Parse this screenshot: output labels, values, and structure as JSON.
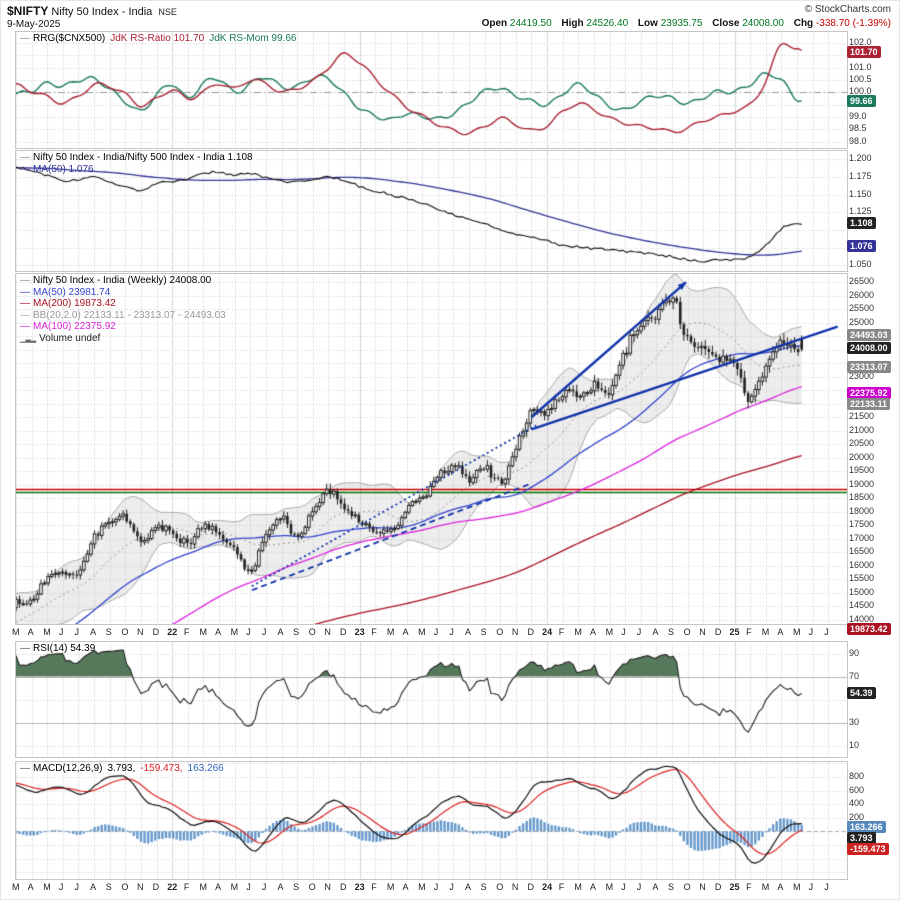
{
  "header": {
    "symbol": "$NIFTY",
    "name": "Nifty 50 Index - India",
    "exchange": "NSE",
    "date": "9-May-2025",
    "copyright": "© StockCharts.com",
    "quote": {
      "open_label": "Open",
      "open": "24419.50",
      "high_label": "High",
      "high": "24526.40",
      "low_label": "Low",
      "low": "23935.75",
      "close_label": "Close",
      "close": "24008.00",
      "chg_label": "Chg",
      "chg": "-338.70 (-1.39%)"
    }
  },
  "colors": {
    "grid": "#ebebeb",
    "grid_year": "#d6d6d6",
    "border": "#c6c6c6",
    "candle": "#222222",
    "ma50": "#3344cc",
    "ma100": "#dd22dd",
    "ma200": "#aa1122",
    "bb": "#aaaaaa",
    "bb_fill": "rgba(190,190,190,0.28)",
    "trend": "#1133aa",
    "hline_red": "#cc0000",
    "hline_green": "#007700",
    "rrg_ratio": "#aa2233",
    "rrg_mom": "#1a7a5e",
    "ratio_line": "#111111",
    "ratio_ma": "#333399",
    "rsi": "#222222",
    "rsi_fill": "#55795a",
    "macd": "#111111",
    "macd_signal": "#dd2222",
    "macd_hist": "#6699cc"
  },
  "x_axis": {
    "labels": [
      "M",
      "A",
      "M",
      "J",
      "J",
      "A",
      "S",
      "O",
      "N",
      "D",
      "22",
      "F",
      "M",
      "A",
      "M",
      "J",
      "J",
      "A",
      "S",
      "O",
      "N",
      "D",
      "23",
      "F",
      "M",
      "A",
      "M",
      "J",
      "J",
      "A",
      "S",
      "O",
      "N",
      "D",
      "24",
      "F",
      "M",
      "A",
      "M",
      "J",
      "J",
      "A",
      "S",
      "O",
      "N",
      "D",
      "25",
      "F",
      "M",
      "A",
      "M",
      "J",
      "J"
    ]
  },
  "chart_data": [
    {
      "id": "rrg",
      "type": "line",
      "legend": [
        {
          "marker": "#888888",
          "parts": [
            {
              "text": "RRG($CNX500)",
              "color": "#000000"
            },
            {
              "text": "JdK RS-Ratio 101.70",
              "color": "#aa2233"
            },
            {
              "text": "JdK RS-Mom 99.66",
              "color": "#1a7a5e"
            }
          ]
        }
      ],
      "ylim": [
        97.75,
        102.45
      ],
      "grid_step": 0.5,
      "baseline": 100,
      "yticks": [
        {
          "v": 102.0,
          "t": "102.0"
        },
        {
          "v": 101.0,
          "t": "101.0"
        },
        {
          "v": 100.5,
          "t": "100.5"
        },
        {
          "v": 100.0,
          "t": "100.0"
        },
        {
          "v": 99.0,
          "t": "99.0"
        },
        {
          "v": 98.5,
          "t": "98.5"
        },
        {
          "v": 98.0,
          "t": "98.0"
        }
      ],
      "tags": [
        {
          "text": "101.70",
          "value": 101.7,
          "bg": "#aa2233"
        },
        {
          "text": "99.66",
          "value": 99.66,
          "bg": "#1a7a5e"
        }
      ],
      "series": [
        {
          "name": "JdK RS-Ratio",
          "color": "#aa2233",
          "last": 101.7,
          "monthly": [
            100.3,
            100.0,
            99.8,
            99.6,
            99.9,
            100.3,
            100.2,
            99.9,
            99.5,
            99.8,
            100.1,
            99.7,
            100.0,
            100.4,
            100.2,
            100.5,
            100.3,
            100.0,
            100.2,
            100.5,
            101.0,
            101.5,
            101.2,
            100.6,
            100.0,
            99.4,
            99.0,
            98.7,
            98.5,
            98.4,
            98.6,
            98.9,
            98.7,
            98.5,
            98.7,
            99.2,
            99.5,
            99.3,
            99.0,
            98.8,
            98.6,
            98.5,
            98.4,
            98.6,
            98.9,
            99.0,
            99.2,
            99.5,
            100.5,
            102.0,
            101.7
          ]
        },
        {
          "name": "JdK RS-Mom",
          "color": "#1a7a5e",
          "last": 99.66,
          "monthly": [
            99.9,
            100.1,
            100.4,
            100.2,
            100.5,
            100.6,
            100.1,
            99.6,
            99.3,
            99.9,
            100.3,
            99.8,
            100.4,
            100.5,
            100.0,
            100.4,
            100.6,
            100.2,
            100.3,
            100.6,
            100.5,
            100.0,
            99.4,
            99.0,
            98.9,
            99.2,
            99.0,
            98.9,
            99.2,
            99.6,
            100.0,
            100.2,
            99.9,
            99.6,
            99.5,
            100.0,
            100.3,
            99.9,
            99.5,
            99.3,
            99.6,
            99.9,
            99.8,
            99.5,
            99.8,
            100.1,
            100.0,
            100.3,
            100.8,
            100.5,
            99.66
          ]
        }
      ]
    },
    {
      "id": "ratio",
      "type": "line",
      "legend": [
        {
          "marker": "#888888",
          "parts": [
            {
              "text": "Nifty 50 Index - India/Nifty 500 Index - India 1.108",
              "color": "#000000"
            }
          ]
        },
        {
          "marker": "#333399",
          "parts": [
            {
              "text": "MA(50) 1.076",
              "color": "#333399"
            }
          ]
        }
      ],
      "ylim": [
        1.042,
        1.212
      ],
      "grid_step": 0.025,
      "ma_period": 50,
      "yticks": [
        {
          "v": 1.2,
          "t": "1.200"
        },
        {
          "v": 1.175,
          "t": "1.175"
        },
        {
          "v": 1.15,
          "t": "1.150"
        },
        {
          "v": 1.125,
          "t": "1.125"
        },
        {
          "v": 1.05,
          "t": "1.050"
        }
      ],
      "tags": [
        {
          "text": "1.108",
          "value": 1.108,
          "bg": "#222222"
        },
        {
          "text": "1.076",
          "value": 1.076,
          "bg": "#333399"
        }
      ],
      "seed_anchors": [
        [
          -46,
          1.186
        ],
        [
          -1,
          1.188
        ]
      ],
      "monthly": [
        1.19,
        1.183,
        1.178,
        1.17,
        1.172,
        1.175,
        1.168,
        1.162,
        1.155,
        1.166,
        1.168,
        1.172,
        1.18,
        1.182,
        1.178,
        1.18,
        1.175,
        1.17,
        1.168,
        1.172,
        1.176,
        1.17,
        1.162,
        1.155,
        1.15,
        1.145,
        1.138,
        1.13,
        1.122,
        1.115,
        1.108,
        1.1,
        1.095,
        1.09,
        1.085,
        1.078,
        1.076,
        1.074,
        1.072,
        1.07,
        1.068,
        1.066,
        1.062,
        1.058,
        1.056,
        1.058,
        1.058,
        1.062,
        1.078,
        1.102,
        1.108
      ]
    },
    {
      "id": "price",
      "type": "candlestick",
      "legend": [
        {
          "marker": "#888888",
          "parts": [
            {
              "text": "Nifty 50 Index - India (Weekly) 24008.00",
              "color": "#000000"
            }
          ]
        },
        {
          "marker": "#3344cc",
          "parts": [
            {
              "text": "MA(50) 23981.74",
              "color": "#3344cc"
            }
          ]
        },
        {
          "marker": "#aa1122",
          "parts": [
            {
              "text": "MA(200) 19873.42",
              "color": "#aa1122"
            }
          ]
        },
        {
          "marker": "#aaaaaa",
          "parts": [
            {
              "text": "BB(20,2.0) 22133.11 - 23313.07 - 24493.03",
              "color": "#999999"
            }
          ]
        },
        {
          "marker": "#dd22dd",
          "parts": [
            {
              "text": "MA(100) 22375.92",
              "color": "#dd22dd"
            }
          ]
        },
        {
          "icon": "volume",
          "parts": [
            {
              "text": "Volume undef",
              "color": "#222222"
            }
          ]
        }
      ],
      "ylim": [
        13850,
        26800
      ],
      "grid_step": 500,
      "yticks": [
        {
          "v": 26500,
          "t": "26500"
        },
        {
          "v": 26000,
          "t": "26000"
        },
        {
          "v": 25500,
          "t": "25500"
        },
        {
          "v": 25000,
          "t": "25000"
        },
        {
          "v": 23000,
          "t": "23000"
        },
        {
          "v": 21500,
          "t": "21500"
        },
        {
          "v": 21000,
          "t": "21000"
        },
        {
          "v": 20500,
          "t": "20500"
        },
        {
          "v": 20000,
          "t": "20000"
        },
        {
          "v": 19500,
          "t": "19500"
        },
        {
          "v": 19000,
          "t": "19000"
        },
        {
          "v": 18500,
          "t": "18500"
        },
        {
          "v": 18000,
          "t": "18000"
        },
        {
          "v": 17500,
          "t": "17500"
        },
        {
          "v": 17000,
          "t": "17000"
        },
        {
          "v": 16500,
          "t": "16500"
        },
        {
          "v": 16000,
          "t": "16000"
        },
        {
          "v": 15500,
          "t": "15500"
        },
        {
          "v": 15000,
          "t": "15000"
        },
        {
          "v": 14500,
          "t": "14500"
        },
        {
          "v": 14000,
          "t": "14000"
        }
      ],
      "tags": [
        {
          "text": "24493.03",
          "value": 24493.03,
          "bg": "#888888"
        },
        {
          "text": "24008.00",
          "value": 24008.0,
          "bg": "#222222"
        },
        {
          "text": "23313.07",
          "value": 23313.07,
          "bg": "#888888"
        },
        {
          "text": "22375.92",
          "value": 22375.92,
          "bg": "#cc00cc"
        },
        {
          "text": "22133.11",
          "value": 22133.11,
          "bg": "#888888"
        },
        {
          "text": "19873.42",
          "value": 19873.42,
          "bg": "#aa1122"
        }
      ],
      "ma": [
        {
          "period": 50,
          "value": 23981.74
        },
        {
          "period": 100,
          "value": 22375.92
        },
        {
          "period": 200,
          "value": 19873.42
        }
      ],
      "bb": {
        "period": 20,
        "mult": 2.0,
        "lower": 22133.11,
        "mid": 23313.07,
        "upper": 24493.03
      },
      "seed_anchors": [
        [
          -46,
          9900
        ],
        [
          -40,
          10300
        ],
        [
          -34,
          10800
        ],
        [
          -28,
          11400
        ],
        [
          -24,
          11900
        ],
        [
          -16,
          12200
        ],
        [
          -12,
          8800
        ],
        [
          -10,
          9800
        ],
        [
          -7,
          11300
        ],
        [
          -4,
          13100
        ],
        [
          -2,
          14100
        ],
        [
          -1,
          14400
        ]
      ],
      "monthly_closes": [
        14700,
        14650,
        15600,
        15700,
        15750,
        17100,
        17600,
        17700,
        16900,
        17350,
        17300,
        16800,
        17450,
        17100,
        16600,
        15800,
        17150,
        17750,
        17100,
        18000,
        18750,
        18100,
        17650,
        17300,
        17350,
        18050,
        18500,
        19200,
        19750,
        19250,
        19650,
        19050,
        20250,
        21700,
        21700,
        22350,
        22300,
        22600,
        22500,
        24000,
        24950,
        25250,
        25950,
        24300,
        24100,
        23650,
        23500,
        22100,
        23350,
        24350,
        24008
      ],
      "last_candle": {
        "open": 24419.5,
        "high": 24526.4,
        "low": 23935.75,
        "close": 24008.0
      },
      "hlines": [
        {
          "value": 18850,
          "color": "#cc0000"
        },
        {
          "value": 18730,
          "color": "#007700"
        }
      ],
      "trendlines": [
        {
          "x1": 33.0,
          "y1": 21500,
          "x2": 42.9,
          "y2": 26500,
          "width": 2.4,
          "dash": null,
          "arrow": true
        },
        {
          "x1": 33.0,
          "y1": 21050,
          "x2": 52.6,
          "y2": 24850,
          "width": 2.4,
          "dash": null,
          "arrow": false
        },
        {
          "x1": 15.1,
          "y1": 15250,
          "x2": 33.3,
          "y2": 21200,
          "width": 1.8,
          "dash": [
            2,
            3
          ],
          "arrow": false
        },
        {
          "x1": 15.1,
          "y1": 15100,
          "x2": 33.0,
          "y2": 19050,
          "width": 1.8,
          "dash": [
            6,
            4
          ],
          "arrow": false
        }
      ]
    },
    {
      "id": "rsi",
      "type": "line",
      "period": 14,
      "legend": [
        {
          "marker": "#555555",
          "parts": [
            {
              "text": "RSI(14) 54.39",
              "color": "#000000"
            }
          ]
        }
      ],
      "ylim": [
        0,
        100
      ],
      "bands": [
        70,
        30
      ],
      "yticks": [
        {
          "v": 90,
          "t": "90"
        },
        {
          "v": 70,
          "t": "70"
        },
        {
          "v": 30,
          "t": "30"
        },
        {
          "v": 10,
          "t": "10"
        }
      ],
      "tags": [
        {
          "text": "54.39",
          "value": 54.39,
          "bg": "#222222"
        }
      ]
    },
    {
      "id": "macd",
      "type": "line",
      "params": [
        12,
        26,
        9
      ],
      "legend": [
        {
          "marker": "#555555",
          "parts": [
            {
              "text": "MACD(12,26,9)",
              "color": "#000000"
            },
            {
              "text": "3.793,",
              "color": "#000000"
            },
            {
              "text": "-159.473,",
              "color": "#dd2222"
            },
            {
              "text": "163.266",
              "color": "#3366bb"
            }
          ]
        }
      ],
      "ylim": [
        -700,
        1020
      ],
      "yticks": [
        {
          "v": 800,
          "t": "800"
        },
        {
          "v": 600,
          "t": "600"
        },
        {
          "v": 400,
          "t": "400"
        },
        {
          "v": 200,
          "t": "200"
        }
      ],
      "tags": [
        {
          "text": "163.266",
          "value": 163.266,
          "bg": "#5588bb"
        },
        {
          "text": "3.793",
          "value": 3.793,
          "bg": "#222222"
        },
        {
          "text": "-159.473",
          "value": -159.473,
          "bg": "#cc2222"
        }
      ]
    }
  ]
}
